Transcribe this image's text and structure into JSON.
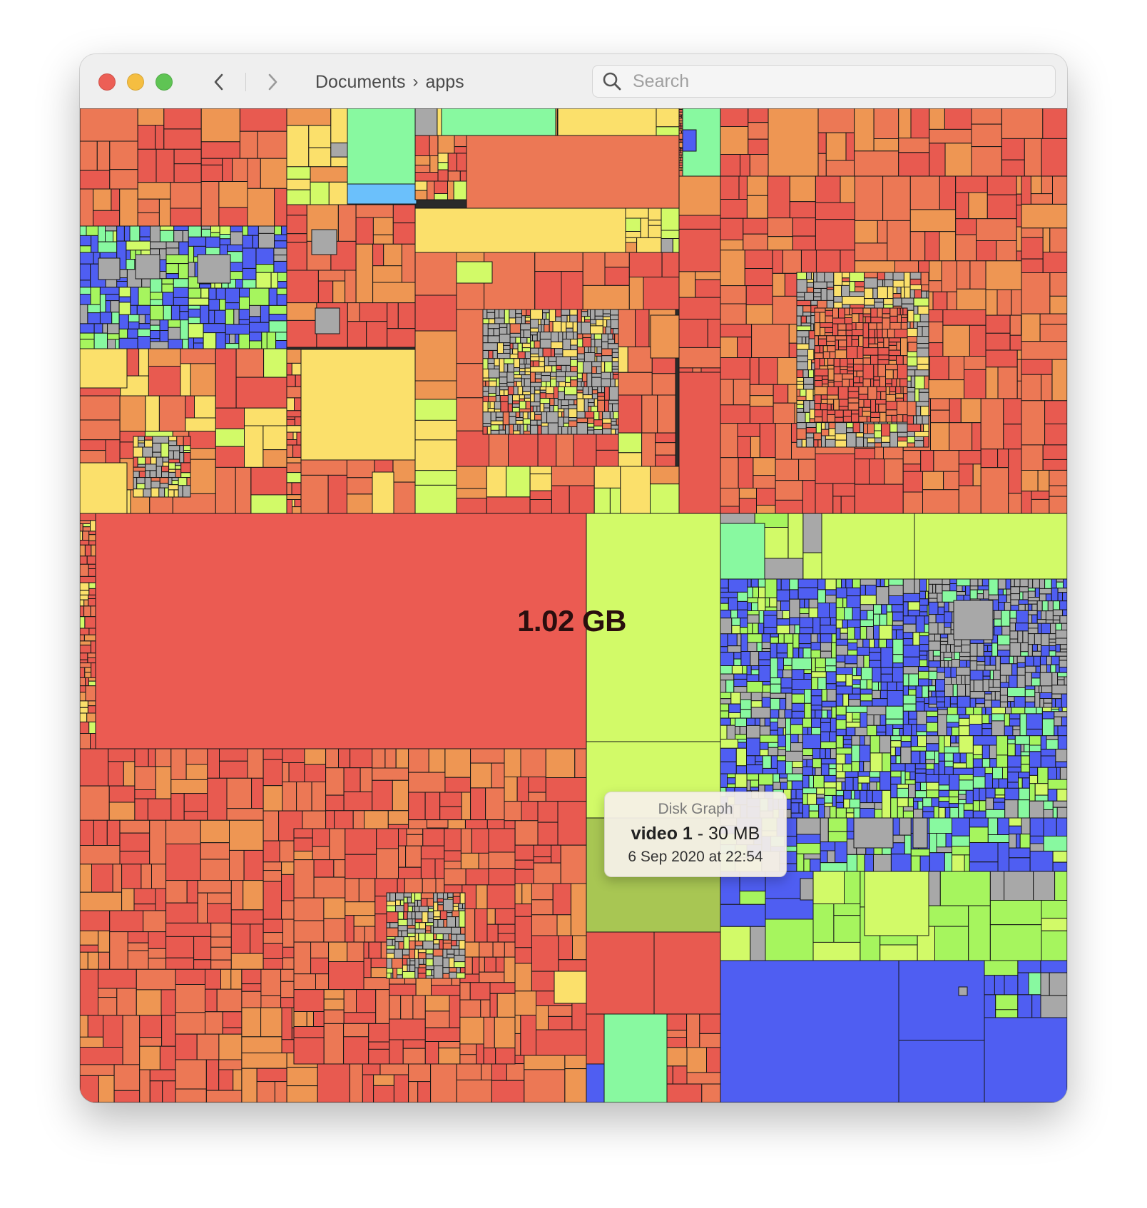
{
  "window": {
    "traffic_lights": [
      {
        "name": "close",
        "color": "#ec5f56"
      },
      {
        "name": "minimize",
        "color": "#f5be41"
      },
      {
        "name": "zoom",
        "color": "#5fc454"
      }
    ]
  },
  "toolbar": {
    "back_icon": "chevron-left-icon",
    "forward_icon": "chevron-right-icon",
    "breadcrumb": [
      "Documents",
      "apps"
    ],
    "breadcrumb_separator": "›",
    "search_placeholder": "Search",
    "search_value": ""
  },
  "treemap": {
    "selected_size": "1.02 GB",
    "palette": {
      "red": "#e85a50",
      "salmon": "#ec7855",
      "orange": "#ee9653",
      "yellow": "#fbe06b",
      "lime": "#d2fa68",
      "green": "#a6f55e",
      "mint": "#88f9a0",
      "blue": "#4f5ef2",
      "sky": "#6bc0fb",
      "gray": "#a8a8a8",
      "olive": "#a8c653"
    }
  },
  "tooltip": {
    "app_name": "Disk Graph",
    "file_name": "video 1",
    "separator": " - ",
    "file_size": "30 MB",
    "modified": "6 Sep 2020 at 22:54"
  }
}
